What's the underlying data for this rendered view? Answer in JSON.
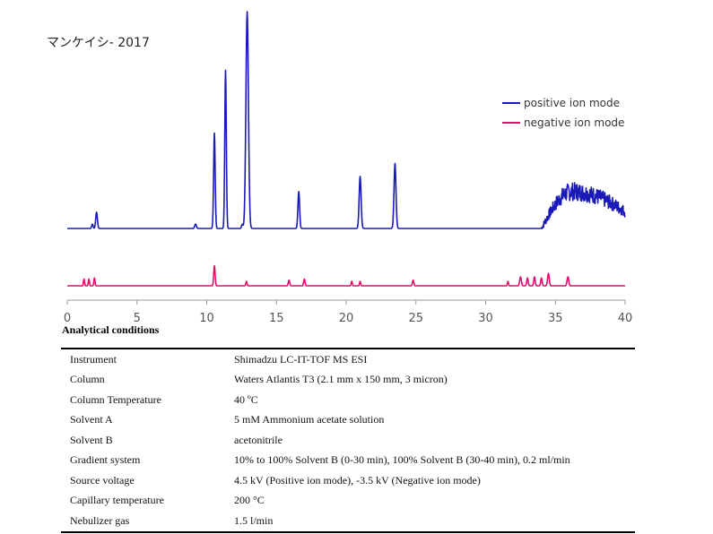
{
  "chart_data": {
    "type": "line",
    "title": "マンケイシ- 2017",
    "xlabel": "",
    "ylabel": "",
    "xlim": [
      0,
      40
    ],
    "xticks": [
      "0",
      "5",
      "10",
      "15",
      "20",
      "25",
      "30",
      "35",
      "40"
    ],
    "grid": false,
    "legend_position": "top-right",
    "series": [
      {
        "name": "positive ion mode",
        "color": "#1a1ab8",
        "baseline": 0,
        "peaks": [
          {
            "x": 1.8,
            "h": 0.02,
            "w": 0.05
          },
          {
            "x": 2.1,
            "h": 0.075,
            "w": 0.06
          },
          {
            "x": 9.2,
            "h": 0.02,
            "w": 0.06
          },
          {
            "x": 10.55,
            "h": 0.44,
            "w": 0.055
          },
          {
            "x": 11.35,
            "h": 0.73,
            "w": 0.055
          },
          {
            "x": 12.55,
            "h": 0.02,
            "w": 0.05
          },
          {
            "x": 12.9,
            "h": 1.0,
            "w": 0.09
          },
          {
            "x": 16.6,
            "h": 0.17,
            "w": 0.06
          },
          {
            "x": 21.0,
            "h": 0.24,
            "w": 0.07
          },
          {
            "x": 23.5,
            "h": 0.3,
            "w": 0.07
          }
        ],
        "noise_region": {
          "x_start": 34.0,
          "x_end": 40.0,
          "peak_x": 36.2,
          "level": 0.17,
          "amplitude": 0.06
        }
      },
      {
        "name": "negative ion mode",
        "color": "#e0106a",
        "baseline": 0,
        "peaks": [
          {
            "x": 1.2,
            "h": 0.03,
            "w": 0.04
          },
          {
            "x": 1.55,
            "h": 0.03,
            "w": 0.04
          },
          {
            "x": 1.95,
            "h": 0.035,
            "w": 0.04
          },
          {
            "x": 10.55,
            "h": 0.09,
            "w": 0.05
          },
          {
            "x": 12.85,
            "h": 0.02,
            "w": 0.04
          },
          {
            "x": 15.9,
            "h": 0.025,
            "w": 0.05
          },
          {
            "x": 17.0,
            "h": 0.03,
            "w": 0.05
          },
          {
            "x": 20.4,
            "h": 0.02,
            "w": 0.04
          },
          {
            "x": 21.0,
            "h": 0.02,
            "w": 0.04
          },
          {
            "x": 24.8,
            "h": 0.025,
            "w": 0.05
          },
          {
            "x": 31.6,
            "h": 0.02,
            "w": 0.04
          },
          {
            "x": 32.5,
            "h": 0.04,
            "w": 0.06
          },
          {
            "x": 33.0,
            "h": 0.035,
            "w": 0.05
          },
          {
            "x": 33.5,
            "h": 0.04,
            "w": 0.05
          },
          {
            "x": 34.0,
            "h": 0.035,
            "w": 0.05
          },
          {
            "x": 34.5,
            "h": 0.055,
            "w": 0.06
          },
          {
            "x": 35.9,
            "h": 0.04,
            "w": 0.06
          }
        ]
      }
    ]
  },
  "conditions": {
    "heading": "Analytical conditions",
    "rows": [
      {
        "param": "Instrument",
        "value": "Shimadzu LC-IT-TOF MS ESI"
      },
      {
        "param": "Column",
        "value": "Waters Atlantis T3 (2.1 mm x 150 mm, 3 micron)"
      },
      {
        "param": "Column Temperature",
        "value": "40 ºC"
      },
      {
        "param": "Solvent A",
        "value": "5 mM Ammonium acetate solution"
      },
      {
        "param": "Solvent B",
        "value": "acetonitrile"
      },
      {
        "param": "Gradient system",
        "value": "10% to 100% Solvent B (0-30 min), 100% Solvent B (30-40 min), 0.2 ml/min"
      },
      {
        "param": "Source voltage",
        "value": "4.5 kV (Positive ion mode), -3.5 kV (Negative ion mode)"
      },
      {
        "param": "Capillary temperature",
        "value": "200 °C"
      },
      {
        "param": "Nebulizer gas",
        "value": "1.5 l/min"
      }
    ]
  }
}
